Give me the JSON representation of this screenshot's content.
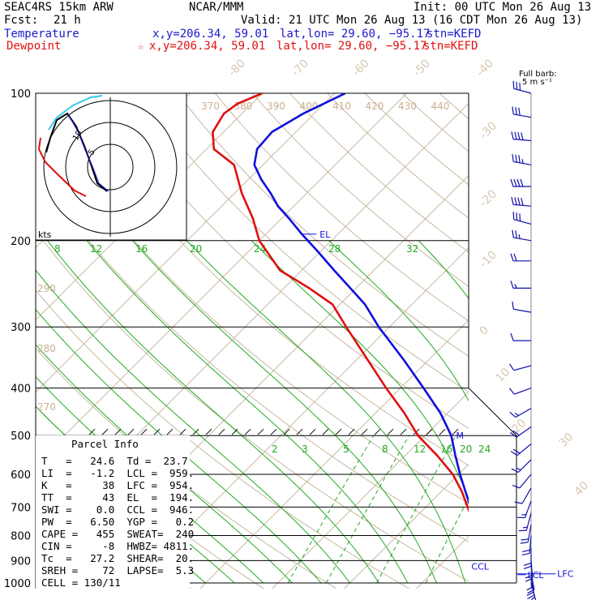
{
  "header": {
    "model": "SEAC4RS 15km ARW",
    "center": "NCAR/MMM",
    "init": "Init: 00 UTC Mon 26 Aug 13",
    "fcst_label": "Fcst:",
    "fcst_value": "21 h",
    "valid": "Valid: 21 UTC Mon 26 Aug 13 (16 CDT Mon 26 Aug 13)",
    "temperature_label": "Temperature",
    "temperature_xy": "x,y=206.34, 59.01",
    "temperature_latlon": "lat,lon= 29.60, −95.17",
    "temperature_stn": "stn=KEFD",
    "dewpoint_label": "Dewpoint",
    "dewpoint_star": "☆",
    "dewpoint_xy": "x,y=206.34, 59.01",
    "dewpoint_latlon": "lat,lon= 29.60, −95.17",
    "dewpoint_stn": "stn=KEFD"
  },
  "barb_panel": {
    "title_line1": "Full barb:",
    "title_line2": "5 m s⁻¹"
  },
  "hodograph": {
    "units_label": "kts",
    "ring_labels": [
      "5",
      "10"
    ]
  },
  "parcel_info": {
    "title": "Parcel Info",
    "rows": [
      "T   =   24.6  Td =  23.7",
      "LI  =   -1.2  LCL =  959.",
      "K   =     38  LFC =  954.",
      "TT  =     43  EL  =  194.",
      "SWI =    0.0  CCL =  946.",
      "PW  =   6.50  YGP =   0.2",
      "CAPE =   455  SWEAT=  240",
      "CIN =     -8  HWBZ= 4811.",
      "Tc  =   27.2  SHEAR=  20.",
      "SREH =    72  LAPSE=  5.3",
      "CELL = 130/11"
    ]
  },
  "chart_data": {
    "type": "line",
    "title": "",
    "xlabel": "",
    "ylabel": "",
    "y_scale": "log (skew-T)",
    "y_tick_labels": [
      "100",
      "200",
      "300",
      "400",
      "500",
      "600",
      "700",
      "800",
      "900",
      "1000"
    ],
    "isotherm_labels": [
      "-80",
      "-70",
      "-60",
      "-50",
      "-40",
      "-30",
      "-20",
      "-10",
      "0",
      "10",
      "20",
      "30",
      "40"
    ],
    "theta_labels_upper": [
      "370",
      "380",
      "390",
      "400",
      "410",
      "420",
      "430",
      "440"
    ],
    "theta_labels_left": [
      "290",
      "280",
      "270"
    ],
    "theta_e_labels": [
      "8",
      "12",
      "16",
      "20",
      "24",
      "28",
      "32"
    ],
    "mixing_ratio_labels": [
      "2",
      "3",
      "5",
      "8",
      "12",
      "16",
      "20",
      "24"
    ],
    "series": [
      {
        "name": "Temperature",
        "color": "#1010dd",
        "points": [
          [
            1000,
            24.6
          ],
          [
            975,
            23.0
          ],
          [
            950,
            21.3
          ],
          [
            900,
            18.0
          ],
          [
            850,
            15.0
          ],
          [
            800,
            12.0
          ],
          [
            750,
            9.0
          ],
          [
            700,
            6.2
          ],
          [
            650,
            3.3
          ],
          [
            600,
            0.2
          ],
          [
            550,
            -3.0
          ],
          [
            500,
            -6.4
          ],
          [
            450,
            -11.0
          ],
          [
            400,
            -16.8
          ],
          [
            350,
            -23.5
          ],
          [
            300,
            -31.5
          ],
          [
            270,
            -36.5
          ],
          [
            250,
            -40.8
          ],
          [
            230,
            -45.5
          ],
          [
            210,
            -50.5
          ],
          [
            194,
            -55.0
          ],
          [
            180,
            -59.0
          ],
          [
            170,
            -62.2
          ],
          [
            160,
            -65.0
          ],
          [
            150,
            -68.2
          ],
          [
            140,
            -71.2
          ],
          [
            130,
            -73.0
          ],
          [
            120,
            -73.3
          ],
          [
            110,
            -71.5
          ],
          [
            100,
            -68.5
          ]
        ]
      },
      {
        "name": "Dewpoint",
        "color": "#e01010",
        "points": [
          [
            1000,
            23.7
          ],
          [
            975,
            22.4
          ],
          [
            950,
            21.0
          ],
          [
            900,
            17.7
          ],
          [
            850,
            14.5
          ],
          [
            800,
            11.5
          ],
          [
            750,
            8.6
          ],
          [
            700,
            5.8
          ],
          [
            650,
            2.8
          ],
          [
            600,
            -0.8
          ],
          [
            550,
            -5.5
          ],
          [
            500,
            -11.0
          ],
          [
            450,
            -16.0
          ],
          [
            400,
            -22.0
          ],
          [
            350,
            -28.5
          ],
          [
            300,
            -36.0
          ],
          [
            270,
            -41.0
          ],
          [
            250,
            -46.5
          ],
          [
            230,
            -53.0
          ],
          [
            200,
            -60.0
          ],
          [
            180,
            -64.0
          ],
          [
            160,
            -69.0
          ],
          [
            140,
            -74.0
          ],
          [
            130,
            -79.0
          ],
          [
            120,
            -81.5
          ],
          [
            110,
            -82.5
          ],
          [
            105,
            -82.0
          ],
          [
            100,
            -80.0
          ]
        ]
      }
    ],
    "level_labels": [
      "EL",
      "M",
      "CCL",
      "LCL",
      "LFC"
    ],
    "wind_barbs": [
      [
        100,
        15,
        285
      ],
      [
        112,
        17,
        280
      ],
      [
        125,
        20,
        275
      ],
      [
        140,
        18,
        280
      ],
      [
        155,
        22,
        270
      ],
      [
        170,
        20,
        275
      ],
      [
        185,
        17,
        285
      ],
      [
        200,
        14,
        280
      ],
      [
        220,
        10,
        270
      ],
      [
        250,
        8,
        270
      ],
      [
        280,
        6,
        280
      ],
      [
        320,
        5,
        270
      ],
      [
        360,
        6,
        255
      ],
      [
        400,
        7,
        250
      ],
      [
        440,
        9,
        240
      ],
      [
        480,
        10,
        235
      ],
      [
        520,
        10,
        230
      ],
      [
        560,
        8,
        225
      ],
      [
        600,
        7,
        220
      ],
      [
        640,
        7,
        210
      ],
      [
        680,
        8,
        200
      ],
      [
        720,
        9,
        195
      ],
      [
        760,
        10,
        190
      ],
      [
        800,
        10,
        185
      ],
      [
        850,
        10,
        180
      ],
      [
        900,
        11,
        175
      ],
      [
        950,
        12,
        170
      ],
      [
        975,
        12,
        170
      ],
      [
        1000,
        8,
        165
      ]
    ]
  }
}
